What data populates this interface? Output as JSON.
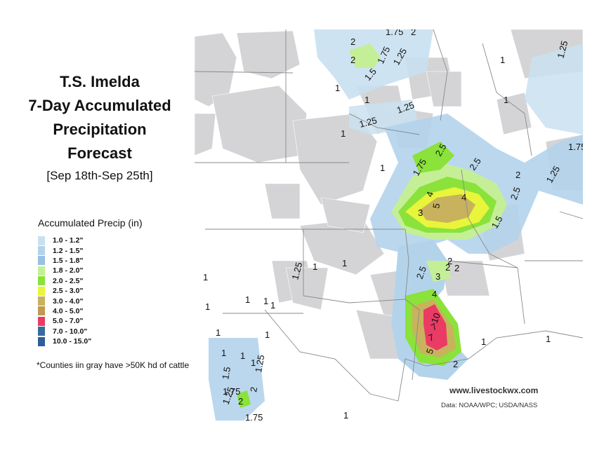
{
  "title": {
    "lines": [
      "T.S. Imelda",
      "7-Day Accumulated",
      "Precipitation",
      "Forecast"
    ],
    "subtitle": "[Sep 18th-Sep 25th]"
  },
  "legend": {
    "title": "Accumulated Precip (in)",
    "items": [
      {
        "label": "1.0 - 1.2\"",
        "color": "#c9e0f0"
      },
      {
        "label": "1.2 - 1.5\"",
        "color": "#b3d3eb"
      },
      {
        "label": "1.5 - 1.8\"",
        "color": "#98c1e3"
      },
      {
        "label": "1.8 - 2.0\"",
        "color": "#c4ef96"
      },
      {
        "label": "2.0 - 2.5\"",
        "color": "#8ae23a"
      },
      {
        "label": "2.5 - 3.0\"",
        "color": "#e9f53a"
      },
      {
        "label": "3.0 - 4.0\"",
        "color": "#c9b25d"
      },
      {
        "label": "4.0 - 5.0\"",
        "color": "#c09a52"
      },
      {
        "label": "5.0 - 7.0\"",
        "color": "#ea3b64"
      },
      {
        "label": "7.0 - 10.0\"",
        "color": "#3a6aa0"
      },
      {
        "label": "10.0 - 15.0\"",
        "color": "#2c5f9a"
      }
    ]
  },
  "footnote": "*Counties iin gray have >50K hd of cattle",
  "credits": {
    "site": "www.livestockwx.com",
    "source": "Data: NOAA/WPC; USDA/NASS"
  },
  "contour_labels": [
    {
      "text": "1.75"
    },
    {
      "text": "2"
    },
    {
      "text": "2"
    },
    {
      "text": "2"
    },
    {
      "text": "1.75"
    },
    {
      "text": "1.25"
    },
    {
      "text": "1.5"
    },
    {
      "text": "1.25"
    },
    {
      "text": "1.25"
    },
    {
      "text": "1.25"
    },
    {
      "text": "1"
    },
    {
      "text": "1"
    },
    {
      "text": "1"
    },
    {
      "text": "1"
    },
    {
      "text": "1"
    },
    {
      "text": "2.5"
    },
    {
      "text": "1.75"
    },
    {
      "text": "2.5"
    },
    {
      "text": "2"
    },
    {
      "text": "1.75"
    },
    {
      "text": "1.25"
    },
    {
      "text": "4"
    },
    {
      "text": "3"
    },
    {
      "text": "5"
    },
    {
      "text": "4"
    },
    {
      "text": "2.5"
    },
    {
      "text": "1.5"
    },
    {
      "text": "1"
    },
    {
      "text": "1.25"
    },
    {
      "text": "1"
    },
    {
      "text": "1"
    },
    {
      "text": "2"
    },
    {
      "text": "2.5"
    },
    {
      "text": "3"
    },
    {
      "text": "2"
    },
    {
      "text": "2"
    },
    {
      "text": "4"
    },
    {
      "text": "7"
    },
    {
      "text": "10"
    },
    {
      "text": "7"
    },
    {
      "text": "5"
    },
    {
      "text": "2"
    },
    {
      "text": "1"
    },
    {
      "text": "1"
    },
    {
      "text": "1"
    },
    {
      "text": "1"
    },
    {
      "text": "1"
    },
    {
      "text": "1"
    },
    {
      "text": "1"
    },
    {
      "text": "1"
    },
    {
      "text": "1"
    },
    {
      "text": "1.5"
    },
    {
      "text": "1"
    },
    {
      "text": "1.25"
    },
    {
      "text": "1.75"
    },
    {
      "text": "1.25"
    },
    {
      "text": "2"
    },
    {
      "text": "2"
    },
    {
      "text": "1.75"
    },
    {
      "text": "1"
    },
    {
      "text": "1"
    },
    {
      "text": "1"
    }
  ]
}
